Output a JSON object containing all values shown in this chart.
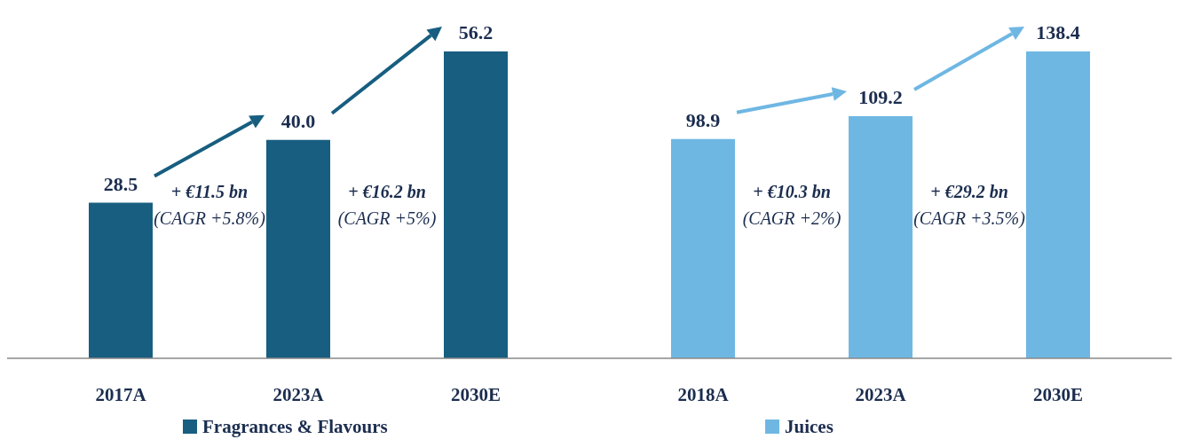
{
  "chart_data": [
    {
      "type": "bar",
      "categories": [
        "2017A",
        "2023A",
        "2030E"
      ],
      "series": [
        {
          "name": "Fragrances & Flavours",
          "color": "#175e80",
          "values": [
            28.5,
            40.0,
            56.2
          ],
          "value_labels": [
            "28.5",
            "40.0",
            "56.2"
          ]
        }
      ],
      "legend": "bottom",
      "annotations": [
        "+ €11.5 bn",
        "(CAGR +5.8%)",
        "+ €16.2 bn",
        "(CAGR +5%)"
      ]
    },
    {
      "type": "bar",
      "categories": [
        "2018A",
        "2023A",
        "2030E"
      ],
      "series": [
        {
          "name": "Juices",
          "color": "#6fb7e3",
          "values": [
            98.9,
            109.2,
            138.4
          ],
          "value_labels": [
            "98.9",
            "109.2",
            "138.4"
          ]
        }
      ],
      "legend": "bottom",
      "annotations": [
        "+ €10.3 bn",
        "(CAGR +2%)",
        "+ €29.2 bn",
        "(CAGR +3.5%)"
      ]
    }
  ]
}
